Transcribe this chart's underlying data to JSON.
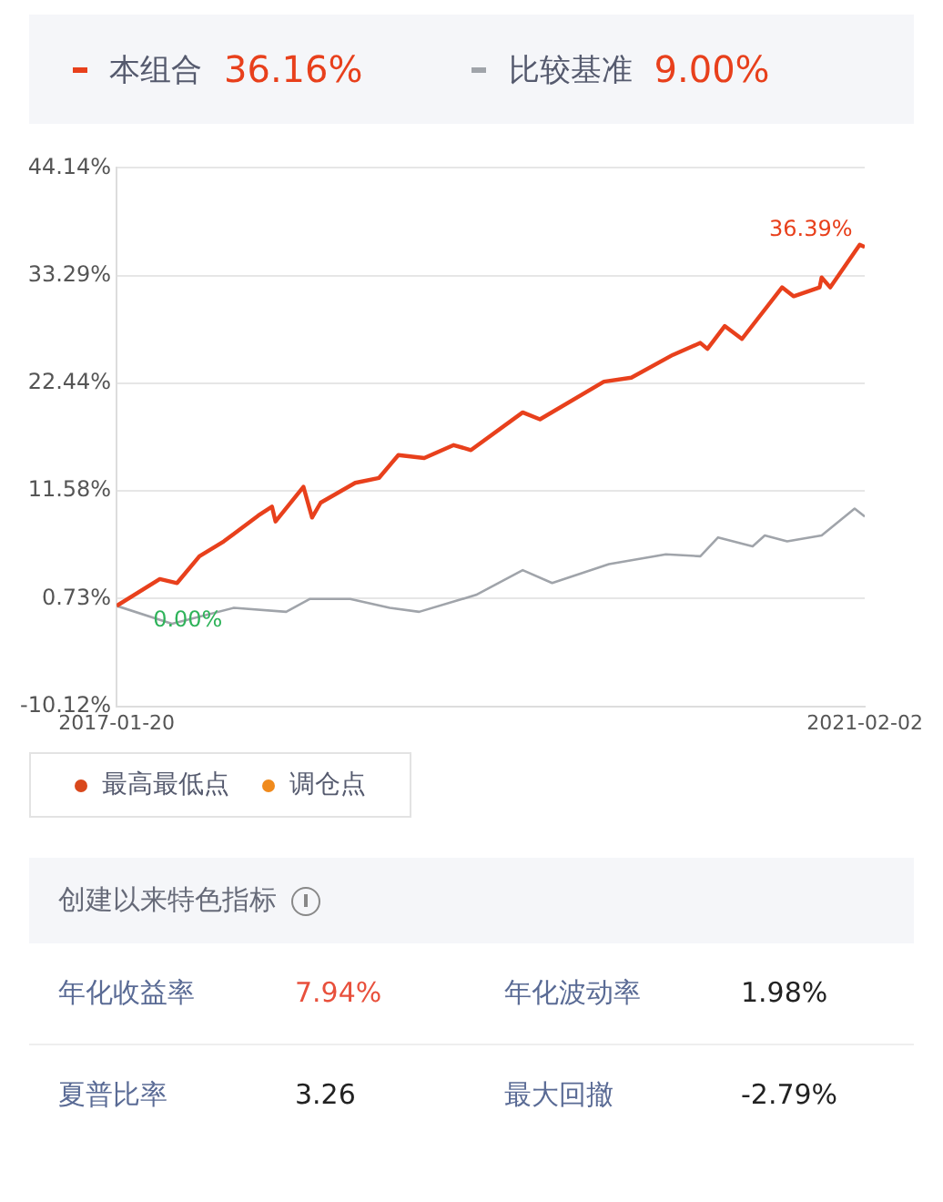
{
  "chart_data": [
    {
      "type": "line",
      "xlim": [
        "2017-01-20",
        "2021-02-02"
      ],
      "xticks": [
        "2017-01-20",
        "2021-02-02"
      ],
      "ylim": [
        -10.12,
        44.14
      ],
      "yticks": [
        {
          "value": -10.12,
          "label": "-10.12%"
        },
        {
          "value": 0.73,
          "label": "0.73%"
        },
        {
          "value": 11.58,
          "label": "11.58%"
        },
        {
          "value": 22.44,
          "label": "22.44%"
        },
        {
          "value": 33.29,
          "label": "33.29%"
        },
        {
          "value": 44.14,
          "label": "44.14%"
        }
      ],
      "grid": "y",
      "legend": "top",
      "marker": "none",
      "line_style": "solid",
      "series": [
        {
          "name": "本组合",
          "color": "#e8401c",
          "x": [
            "2017-01-20",
            "2017-04-15",
            "2017-05-19",
            "2017-07-02",
            "2017-08-19",
            "2017-10-26",
            "2017-11-22",
            "2017-11-29",
            "2018-01-23",
            "2018-02-09",
            "2018-02-26",
            "2018-05-05",
            "2018-06-21",
            "2018-07-29",
            "2018-09-18",
            "2018-11-15",
            "2018-12-19",
            "2019-03-31",
            "2019-05-04",
            "2019-09-07",
            "2019-10-31",
            "2020-01-21",
            "2020-03-15",
            "2020-03-29",
            "2020-05-02",
            "2020-06-05",
            "2020-08-23",
            "2020-09-15",
            "2020-11-05",
            "2020-11-09",
            "2020-11-26",
            "2021-01-23",
            "2021-02-02"
          ],
          "values": [
            0,
            2.7,
            2.3,
            5.0,
            6.5,
            9.1,
            10.0,
            8.5,
            12.0,
            8.9,
            10.4,
            12.4,
            12.9,
            15.2,
            14.9,
            16.2,
            15.7,
            19.5,
            18.8,
            22.6,
            23.0,
            25.3,
            26.5,
            25.9,
            28.2,
            26.9,
            32.1,
            31.2,
            32.1,
            33.1,
            32.1,
            36.39,
            36.16
          ]
        },
        {
          "name": "比较基准",
          "color": "#a0a4aa",
          "x": [
            "2017-01-20",
            "2017-05-09",
            "2017-09-08",
            "2017-12-20",
            "2018-02-05",
            "2018-04-25",
            "2018-07-12",
            "2018-09-08",
            "2018-12-29",
            "2019-03-31",
            "2019-05-28",
            "2019-09-17",
            "2020-01-07",
            "2020-03-15",
            "2020-04-19",
            "2020-06-26",
            "2020-07-20",
            "2020-09-02",
            "2020-11-09",
            "2021-01-13",
            "2021-02-02"
          ],
          "values": [
            0,
            -1.8,
            -0.2,
            -0.6,
            0.7,
            0.7,
            -0.2,
            -0.6,
            1.1,
            3.6,
            2.3,
            4.2,
            5.2,
            5.0,
            6.9,
            6.0,
            7.1,
            6.5,
            7.1,
            9.8,
            9.0
          ]
        }
      ],
      "annotations": [
        "36.16%",
        "9.00%",
        {
          "text": "36.39%",
          "x": "2021-01-23",
          "y": 36.39
        },
        {
          "text": "0.00%",
          "x": "2017-01-20",
          "y": 0
        },
        "最高最低点",
        "调仓点"
      ]
    },
    {
      "type": "other",
      "title": "创建以来特色指标",
      "annotations": [
        "年化收益率",
        "7.94%",
        "年化波动率",
        "1.98%",
        "夏普比率",
        "3.26",
        "最大回撤",
        "-2.79%"
      ]
    }
  ]
}
